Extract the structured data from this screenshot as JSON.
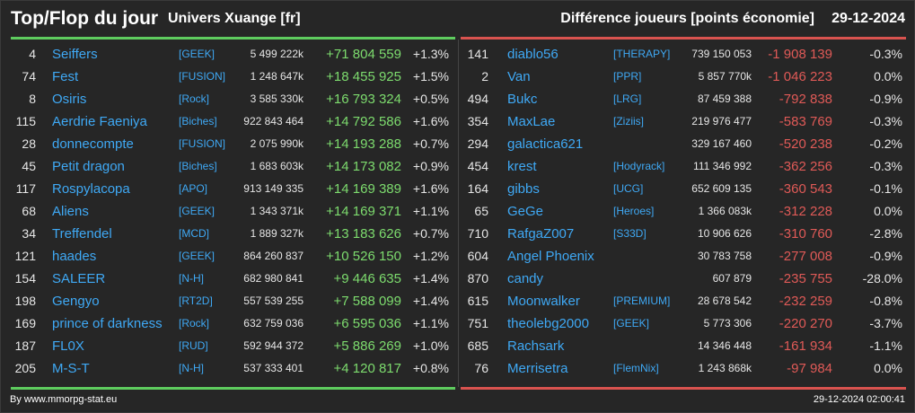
{
  "header": {
    "title": "Top/Flop du jour",
    "universe": "Univers Xuange [fr]",
    "subtitle": "Différence joueurs [points économie]",
    "date": "29-12-2024"
  },
  "colors": {
    "top_accent": "#5ecc5e",
    "flop_accent": "#d9534f",
    "link": "#3fa9f5",
    "positive": "#7ddc6e",
    "negative": "#e05a57"
  },
  "top": [
    {
      "rank": "4",
      "name": "Seiffers",
      "guild": "[GEEK]",
      "points": "5 499 222k",
      "diff": "+71 804 559",
      "pct": "+1.3%"
    },
    {
      "rank": "74",
      "name": "Fest",
      "guild": "[FUSION]",
      "points": "1 248 647k",
      "diff": "+18 455 925",
      "pct": "+1.5%"
    },
    {
      "rank": "8",
      "name": "Osiris",
      "guild": "[Rock]",
      "points": "3 585 330k",
      "diff": "+16 793 324",
      "pct": "+0.5%"
    },
    {
      "rank": "115",
      "name": "Aerdrie Faeniya",
      "guild": "[Biches]",
      "points": "922 843 464",
      "diff": "+14 792 586",
      "pct": "+1.6%"
    },
    {
      "rank": "28",
      "name": "donnecompte",
      "guild": "[FUSION]",
      "points": "2 075 990k",
      "diff": "+14 193 288",
      "pct": "+0.7%"
    },
    {
      "rank": "45",
      "name": "Petit dragon",
      "guild": "[Biches]",
      "points": "1 683 603k",
      "diff": "+14 173 082",
      "pct": "+0.9%"
    },
    {
      "rank": "117",
      "name": "Rospylacopa",
      "guild": "[APO]",
      "points": "913 149 335",
      "diff": "+14 169 389",
      "pct": "+1.6%"
    },
    {
      "rank": "68",
      "name": "Aliens",
      "guild": "[GEEK]",
      "points": "1 343 371k",
      "diff": "+14 169 371",
      "pct": "+1.1%"
    },
    {
      "rank": "34",
      "name": "Treffendel",
      "guild": "[MCD]",
      "points": "1 889 327k",
      "diff": "+13 183 626",
      "pct": "+0.7%"
    },
    {
      "rank": "121",
      "name": "haades",
      "guild": "[GEEK]",
      "points": "864 260 837",
      "diff": "+10 526 150",
      "pct": "+1.2%"
    },
    {
      "rank": "154",
      "name": "SALEER",
      "guild": "[N-H]",
      "points": "682 980 841",
      "diff": "+9 446 635",
      "pct": "+1.4%"
    },
    {
      "rank": "198",
      "name": "Gengyo",
      "guild": "[RT2D]",
      "points": "557 539 255",
      "diff": "+7 588 099",
      "pct": "+1.4%"
    },
    {
      "rank": "169",
      "name": "prince of darkness",
      "guild": "[Rock]",
      "points": "632 759 036",
      "diff": "+6 595 036",
      "pct": "+1.1%"
    },
    {
      "rank": "187",
      "name": "FL0X",
      "guild": "[RUD]",
      "points": "592 944 372",
      "diff": "+5 886 269",
      "pct": "+1.0%"
    },
    {
      "rank": "205",
      "name": "M-S-T",
      "guild": "[N-H]",
      "points": "537 333 401",
      "diff": "+4 120 817",
      "pct": "+0.8%"
    }
  ],
  "flop": [
    {
      "rank": "141",
      "name": "diablo56",
      "guild": "[THERAPY]",
      "points": "739 150 053",
      "diff": "-1 908 139",
      "pct": "-0.3%"
    },
    {
      "rank": "2",
      "name": "Van",
      "guild": "[PPR]",
      "points": "5 857 770k",
      "diff": "-1 046 223",
      "pct": "0.0%"
    },
    {
      "rank": "494",
      "name": "Bukc",
      "guild": "[LRG]",
      "points": "87 459 388",
      "diff": "-792 838",
      "pct": "-0.9%"
    },
    {
      "rank": "354",
      "name": "MaxLae",
      "guild": "[Ziziis]",
      "points": "219 976 477",
      "diff": "-583 769",
      "pct": "-0.3%"
    },
    {
      "rank": "294",
      "name": "galactica621",
      "guild": "",
      "points": "329 167 460",
      "diff": "-520 238",
      "pct": "-0.2%"
    },
    {
      "rank": "454",
      "name": "krest",
      "guild": "[Hodyrack]",
      "points": "111 346 992",
      "diff": "-362 256",
      "pct": "-0.3%"
    },
    {
      "rank": "164",
      "name": "gibbs",
      "guild": "[UCG]",
      "points": "652 609 135",
      "diff": "-360 543",
      "pct": "-0.1%"
    },
    {
      "rank": "65",
      "name": "GeGe",
      "guild": "[Heroes]",
      "points": "1 366 083k",
      "diff": "-312 228",
      "pct": "0.0%"
    },
    {
      "rank": "710",
      "name": "RafgaZ007",
      "guild": "[S33D]",
      "points": "10 906 626",
      "diff": "-310 760",
      "pct": "-2.8%"
    },
    {
      "rank": "604",
      "name": "Angel Phoenix",
      "guild": "",
      "points": "30 783 758",
      "diff": "-277 008",
      "pct": "-0.9%"
    },
    {
      "rank": "870",
      "name": "candy",
      "guild": "",
      "points": "607 879",
      "diff": "-235 755",
      "pct": "-28.0%"
    },
    {
      "rank": "615",
      "name": "Moonwalker",
      "guild": "[PREMIUM]",
      "points": "28 678 542",
      "diff": "-232 259",
      "pct": "-0.8%"
    },
    {
      "rank": "751",
      "name": "theolebg2000",
      "guild": "[GEEK]",
      "points": "5 773 306",
      "diff": "-220 270",
      "pct": "-3.7%"
    },
    {
      "rank": "685",
      "name": "Rachsark",
      "guild": "",
      "points": "14 346 448",
      "diff": "-161 934",
      "pct": "-1.1%"
    },
    {
      "rank": "76",
      "name": "Merrisetra",
      "guild": "[FlemNix]",
      "points": "1 243 868k",
      "diff": "-97 984",
      "pct": "0.0%"
    }
  ],
  "footer": {
    "source": "By www.mmorpg-stat.eu",
    "timestamp": "29-12-2024 02:00:41"
  }
}
